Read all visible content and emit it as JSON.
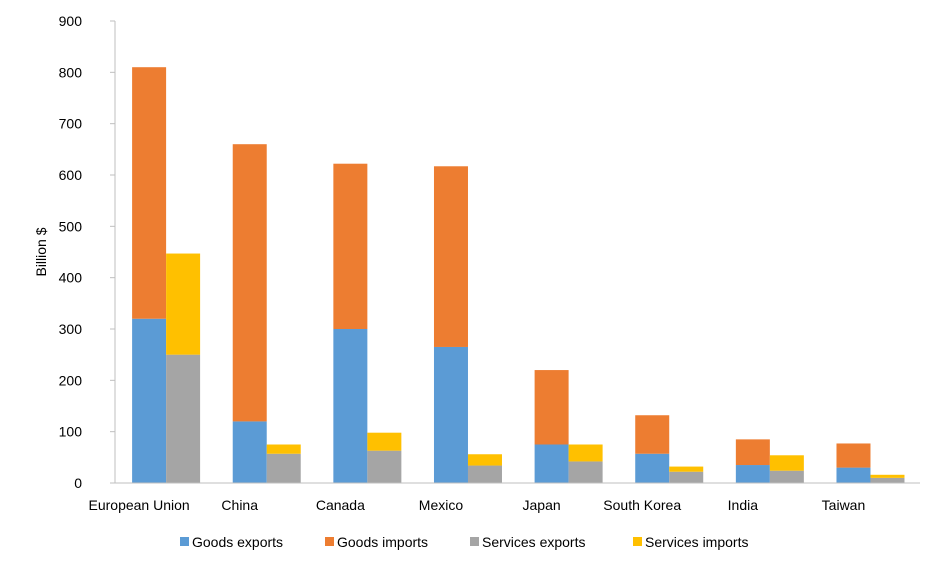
{
  "chart_data": {
    "type": "bar",
    "subtype": "stacked-grouped",
    "title": "",
    "xlabel": "",
    "ylabel": "Billion $",
    "ylim": [
      0,
      900
    ],
    "yticks": [
      0,
      100,
      200,
      300,
      400,
      500,
      600,
      700,
      800,
      900
    ],
    "grid": false,
    "legend_position": "bottom",
    "categories": [
      "European Union",
      "China",
      "Canada",
      "Mexico",
      "Japan",
      "South Korea",
      "India",
      "Taiwan"
    ],
    "stacks": [
      {
        "stack": "goods",
        "series": [
          {
            "name": "Goods exports",
            "color": "#5B9BD5",
            "values": [
              320,
              120,
              300,
              265,
              75,
              57,
              35,
              30
            ]
          },
          {
            "name": "Goods imports",
            "color": "#ED7D31",
            "values": [
              490,
              540,
              322,
              352,
              145,
              75,
              50,
              47
            ]
          }
        ]
      },
      {
        "stack": "services",
        "series": [
          {
            "name": "Services exports",
            "color": "#A5A5A5",
            "values": [
              250,
              57,
              63,
              34,
              42,
              22,
              24,
              10
            ]
          },
          {
            "name": "Services imports",
            "color": "#FFC000",
            "values": [
              197,
              18,
              35,
              22,
              33,
              10,
              30,
              6
            ]
          }
        ]
      }
    ]
  }
}
